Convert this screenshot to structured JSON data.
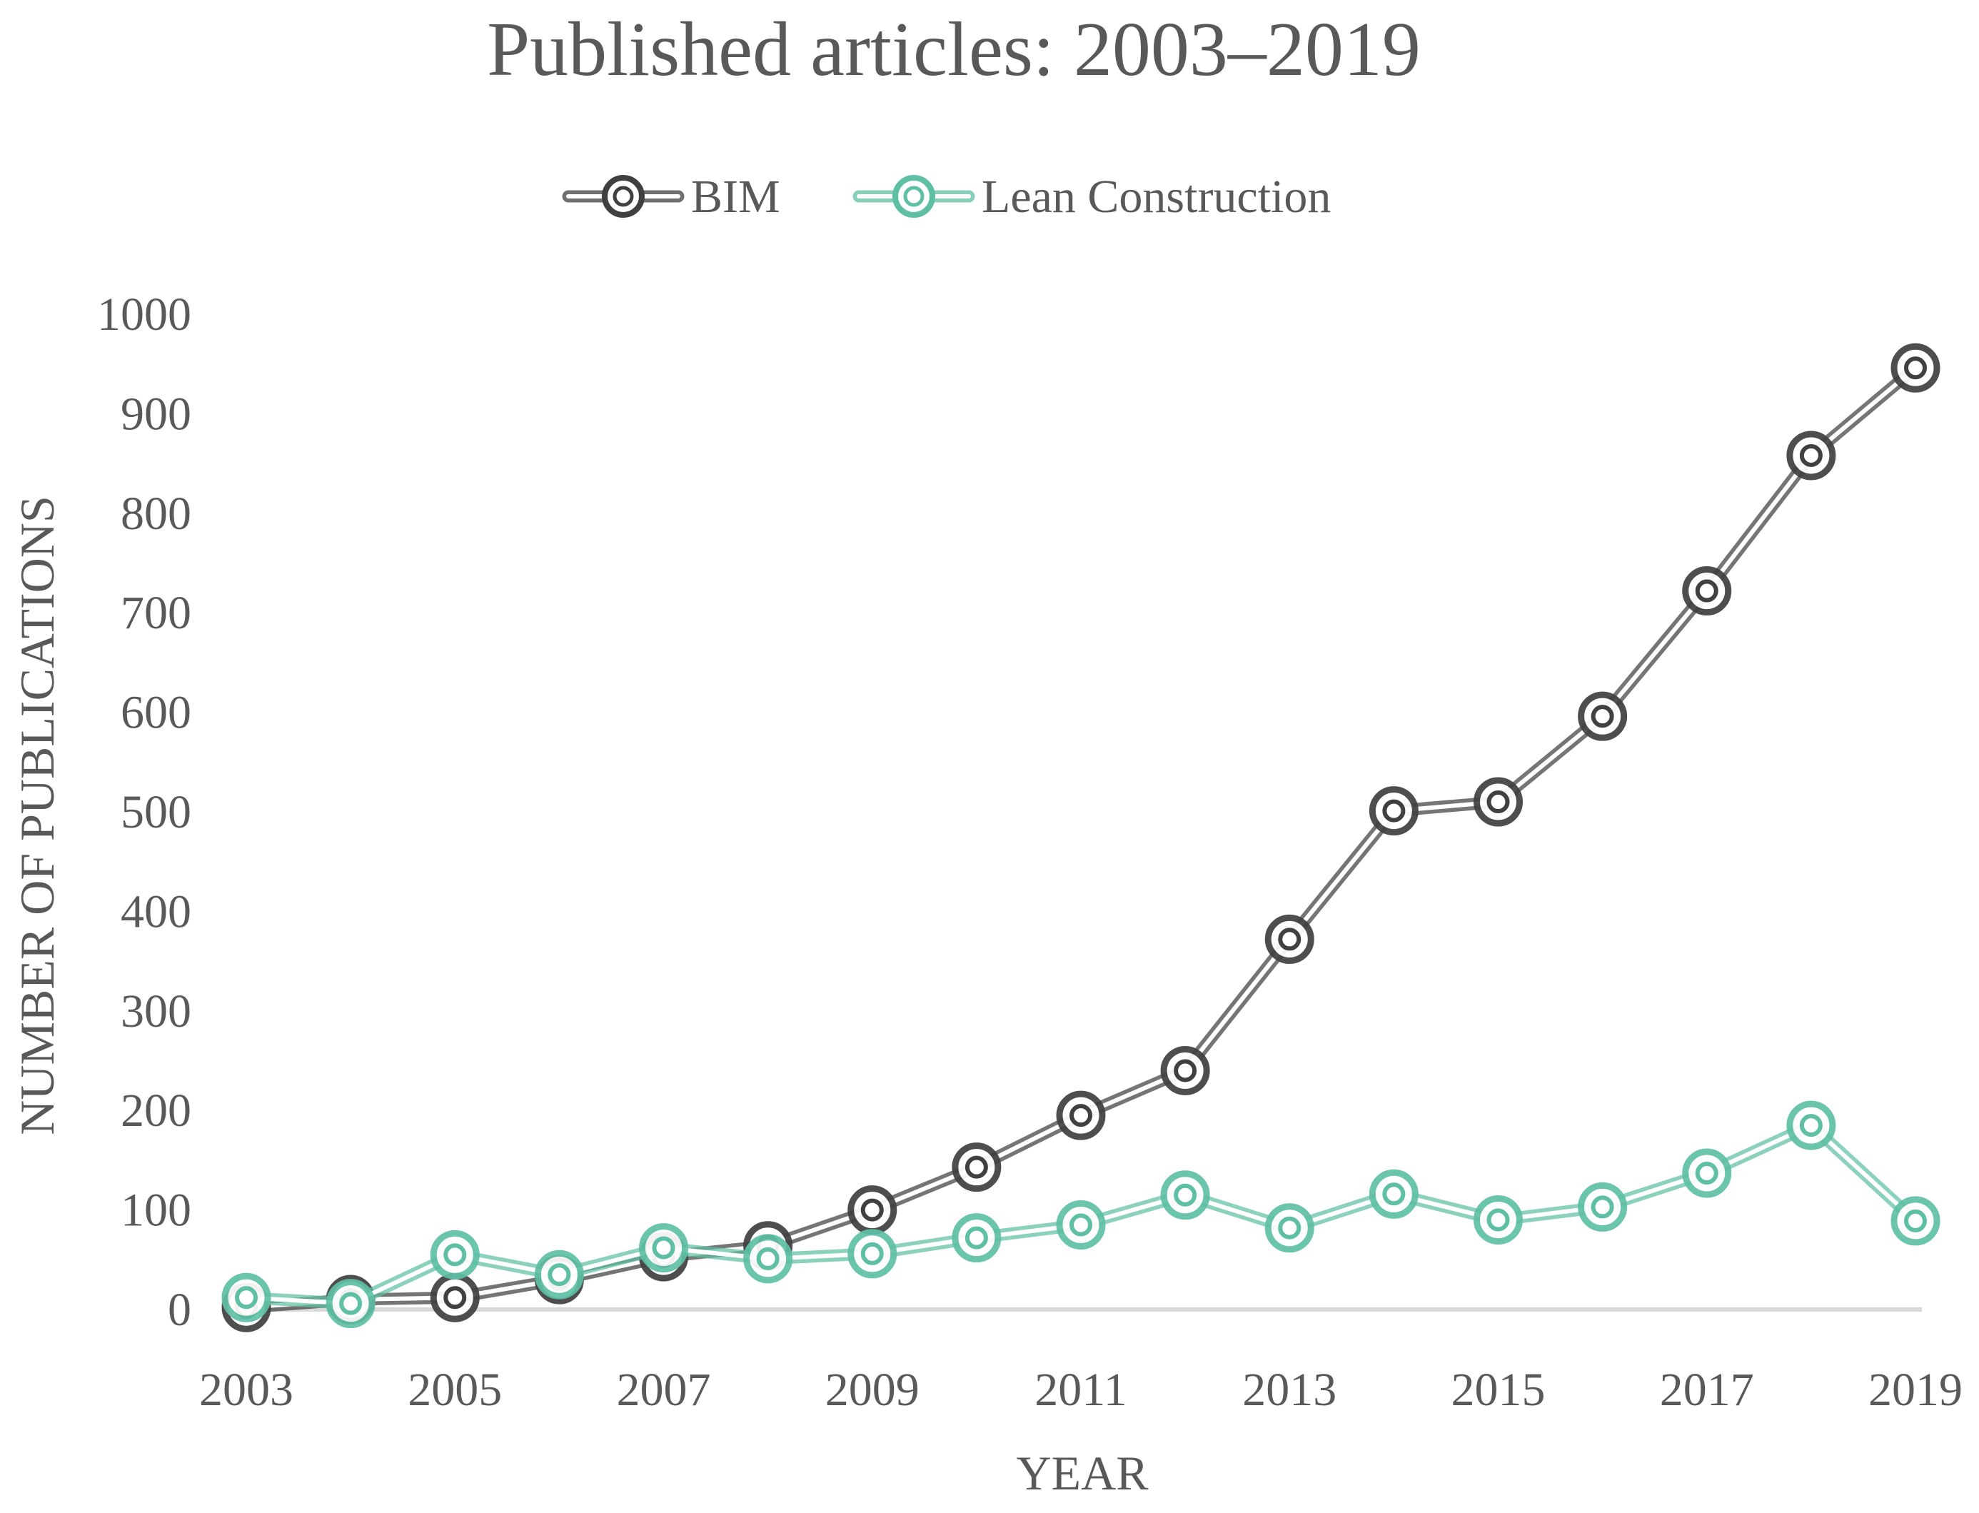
{
  "chart_data": {
    "type": "line",
    "title": "Published articles: 2003–2019",
    "xlabel": "YEAR",
    "ylabel": "NUMBER OF PUBLICATIONS",
    "ylim": [
      0,
      1000
    ],
    "yticks": [
      0,
      100,
      200,
      300,
      400,
      500,
      600,
      700,
      800,
      900,
      1000
    ],
    "x": [
      2003,
      2004,
      2005,
      2006,
      2007,
      2008,
      2009,
      2010,
      2011,
      2012,
      2013,
      2014,
      2015,
      2016,
      2017,
      2018,
      2019
    ],
    "xtick_labels": [
      "2003",
      "2005",
      "2007",
      "2009",
      "2011",
      "2013",
      "2015",
      "2017",
      "2019"
    ],
    "grid": false,
    "legend_position": "top-center",
    "series": [
      {
        "name": "BIM",
        "color": "#404040",
        "values": [
          2,
          10,
          12,
          30,
          53,
          64,
          100,
          143,
          195,
          240,
          372,
          501,
          510,
          596,
          722,
          858,
          946
        ]
      },
      {
        "name": "Lean Construction",
        "color": "#5fbfa5",
        "values": [
          12,
          6,
          55,
          35,
          62,
          51,
          56,
          72,
          85,
          115,
          82,
          116,
          90,
          103,
          137,
          185,
          89
        ]
      }
    ]
  }
}
